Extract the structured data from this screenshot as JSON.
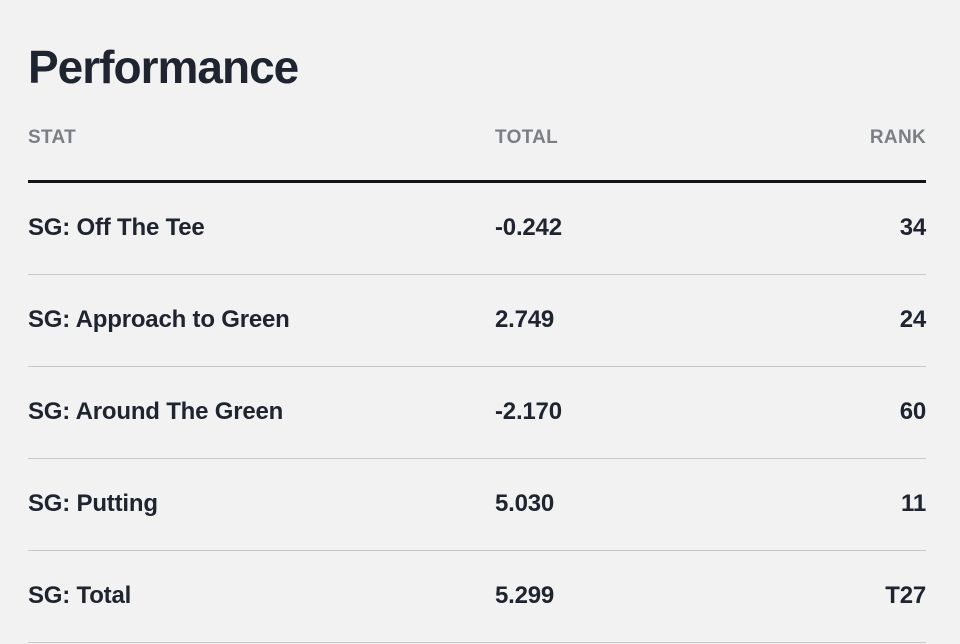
{
  "section": {
    "title": "Performance"
  },
  "table": {
    "headers": {
      "stat": "STAT",
      "total": "TOTAL",
      "rank": "RANK"
    },
    "rows": [
      {
        "stat": "SG: Off The Tee",
        "total": "-0.242",
        "rank": "34"
      },
      {
        "stat": "SG: Approach to Green",
        "total": "2.749",
        "rank": "24"
      },
      {
        "stat": "SG: Around The Green",
        "total": "-2.170",
        "rank": "60"
      },
      {
        "stat": "SG: Putting",
        "total": "5.030",
        "rank": "11"
      },
      {
        "stat": "SG: Total",
        "total": "5.299",
        "rank": "T27"
      }
    ]
  },
  "colors": {
    "background": "#f2f2f2",
    "text": "#1e2530",
    "header_text": "#7b7f85",
    "header_rule": "#111418",
    "row_divider": "#c9c9c9"
  }
}
